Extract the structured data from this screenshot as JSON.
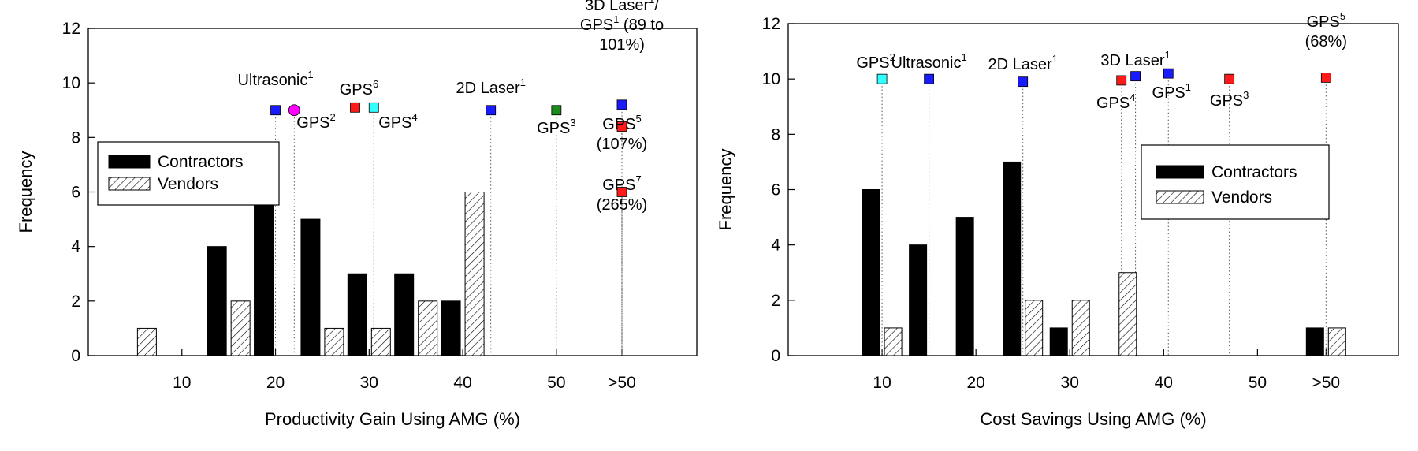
{
  "chart_data": [
    {
      "type": "bar",
      "xlabel": "Productivity Gain Using AMG (%)",
      "ylabel": "Frequency",
      "ylim": [
        0,
        12
      ],
      "yticks": [
        "0",
        "2",
        "4",
        "6",
        "8",
        "10",
        "12"
      ],
      "xticks": [
        "10",
        "20",
        "30",
        "40",
        "50",
        ">50"
      ],
      "categories": [
        "5",
        "15",
        "20",
        "25",
        "30",
        "35",
        "40"
      ],
      "series": [
        {
          "name": "Contractors",
          "values": [
            0,
            4,
            6,
            5,
            3,
            3,
            2
          ]
        },
        {
          "name": "Vendors",
          "values": [
            1,
            2,
            0,
            1,
            1,
            2,
            6
          ]
        }
      ],
      "legend": {
        "position": "middle-left",
        "entries": [
          "Contractors",
          "Vendors"
        ]
      },
      "annotations": [
        {
          "lines": [
            {
              "t": "Ultrasonic",
              "s": "1"
            }
          ],
          "x": 20,
          "y": 9,
          "marker": "square",
          "color": "#1a1aff"
        },
        {
          "lines": [
            {
              "t": "GPS",
              "s": "2"
            }
          ],
          "x": 22,
          "y": 9,
          "marker": "circle",
          "color": "#ff00ff"
        },
        {
          "lines": [
            {
              "t": "GPS",
              "s": "6"
            }
          ],
          "x": 28.5,
          "y": 9.1,
          "marker": "square",
          "color": "#ff1a1a"
        },
        {
          "lines": [
            {
              "t": "GPS",
              "s": "4"
            }
          ],
          "x": 30.5,
          "y": 9.1,
          "marker": "square",
          "color": "#33ffff"
        },
        {
          "lines": [
            {
              "t": "2D Laser",
              "s": "1"
            }
          ],
          "x": 43,
          "y": 9,
          "marker": "square",
          "color": "#1a1aff"
        },
        {
          "lines": [
            {
              "t": "GPS",
              "s": "3"
            }
          ],
          "x": 50,
          "y": 9,
          "marker": "square",
          "color": "#1a8a1a"
        },
        {
          "lines": [
            {
              "t": "3D Laser",
              "s": "1",
              "r": "/"
            },
            {
              "t": "GPS",
              "s": "1",
              "r": " (89 to"
            },
            {
              "t": "101%)"
            }
          ],
          "x": ">50",
          "y": 9.2,
          "marker": "square",
          "color": "#1a1aff"
        },
        {
          "lines": [
            {
              "t": "GPS",
              "s": "5"
            },
            {
              "t": "(107%)"
            }
          ],
          "x": ">50",
          "y": 8.4,
          "marker": "square",
          "color": "#ff1a1a"
        },
        {
          "lines": [
            {
              "t": "GPS",
              "s": "7"
            },
            {
              "t": "(265%)"
            }
          ],
          "x": ">50",
          "y": 6,
          "marker": "square",
          "color": "#ff1a1a"
        }
      ]
    },
    {
      "type": "bar",
      "xlabel": "Cost Savings Using AMG (%)",
      "ylabel": "Frequency",
      "ylim": [
        0,
        12
      ],
      "yticks": [
        "0",
        "2",
        "4",
        "6",
        "8",
        "10",
        "12"
      ],
      "xticks": [
        "10",
        "20",
        "30",
        "40",
        "50",
        ">50"
      ],
      "categories": [
        "10",
        "15",
        "20",
        "25",
        "30",
        "35",
        ">50"
      ],
      "series": [
        {
          "name": "Contractors",
          "values": [
            6,
            4,
            5,
            7,
            1,
            0,
            1
          ]
        },
        {
          "name": "Vendors",
          "values": [
            1,
            0,
            0,
            2,
            2,
            3,
            1
          ]
        }
      ],
      "legend": {
        "position": "middle-right",
        "entries": [
          "Contractors",
          "Vendors"
        ]
      },
      "annotations": [
        {
          "lines": [
            {
              "t": "GPS",
              "s": "2"
            }
          ],
          "x": 10,
          "y": 10,
          "marker": "square",
          "color": "#33ffff"
        },
        {
          "lines": [
            {
              "t": "Ultrasonic",
              "s": "1"
            }
          ],
          "x": 15,
          "y": 10,
          "marker": "square",
          "color": "#1a1aff"
        },
        {
          "lines": [
            {
              "t": "2D Laser",
              "s": "1"
            }
          ],
          "x": 25,
          "y": 9.9,
          "marker": "square",
          "color": "#1a1aff"
        },
        {
          "lines": [
            {
              "t": "GPS",
              "s": "4"
            }
          ],
          "x": 35.5,
          "y": 9.95,
          "marker": "square",
          "color": "#ff1a1a"
        },
        {
          "lines": [
            {
              "t": "3D Laser",
              "s": "1"
            }
          ],
          "x": 37,
          "y": 10.1,
          "marker": "square",
          "color": "#1a1aff"
        },
        {
          "lines": [
            {
              "t": "GPS",
              "s": "1"
            }
          ],
          "x": 40.5,
          "y": 10.2,
          "marker": "square",
          "color": "#1a1aff"
        },
        {
          "lines": [
            {
              "t": "GPS",
              "s": "3"
            }
          ],
          "x": 47,
          "y": 10,
          "marker": "square",
          "color": "#ff1a1a"
        },
        {
          "lines": [
            {
              "t": "GPS",
              "s": "5"
            },
            {
              "t": "(68%)"
            }
          ],
          "x": ">50",
          "y": 10.05,
          "marker": "square",
          "color": "#ff1a1a"
        }
      ]
    }
  ]
}
